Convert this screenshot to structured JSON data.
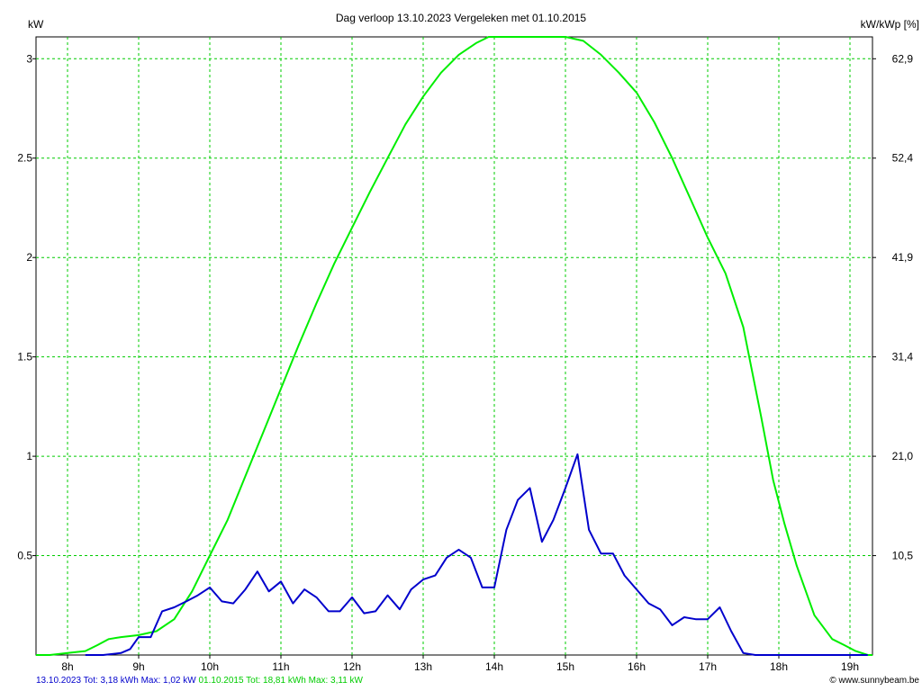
{
  "chart_data": {
    "type": "line",
    "title": "Dag  verloop 13.10.2023   Vergeleken met 01.10.2015",
    "ylabel": "kW",
    "ylabel_right": "kW/kWp [%]",
    "ylim": [
      0,
      3.11
    ],
    "x_ticks": [
      "8h",
      "9h",
      "10h",
      "11h",
      "12h",
      "13h",
      "14h",
      "15h",
      "16h",
      "17h",
      "18h",
      "19h"
    ],
    "y_ticks": [
      {
        "value": 0.5,
        "label": "0.5"
      },
      {
        "value": 1.0,
        "label": "1"
      },
      {
        "value": 1.5,
        "label": "1.5"
      },
      {
        "value": 2.0,
        "label": "2"
      },
      {
        "value": 2.5,
        "label": "2.5"
      },
      {
        "value": 3.0,
        "label": "3"
      }
    ],
    "y_right_ticks": [
      {
        "value": 0.5,
        "label": "10,5"
      },
      {
        "value": 1.0,
        "label": "21,0"
      },
      {
        "value": 1.5,
        "label": "31,4"
      },
      {
        "value": 2.0,
        "label": "41,9"
      },
      {
        "value": 2.5,
        "label": "52,4"
      },
      {
        "value": 3.0,
        "label": "62,9"
      }
    ],
    "grid": true,
    "series": [
      {
        "name": "01.10.2015",
        "color": "#00ee00",
        "x": [
          7.25,
          7.5,
          7.75,
          8.0,
          8.25,
          8.42,
          8.58,
          8.75,
          9.0,
          9.25,
          9.5,
          9.75,
          10.0,
          10.25,
          10.5,
          10.75,
          11.0,
          11.25,
          11.5,
          11.75,
          12.0,
          12.25,
          12.5,
          12.75,
          13.0,
          13.25,
          13.5,
          13.75,
          13.92,
          14.08,
          14.25,
          14.42,
          14.58,
          14.75,
          15.0,
          15.25,
          15.5,
          15.75,
          16.0,
          16.25,
          16.5,
          16.75,
          17.0,
          17.25,
          17.5,
          17.75,
          17.92,
          18.08,
          18.25,
          18.5,
          18.75,
          18.92,
          19.08,
          19.25,
          19.5
        ],
        "y": [
          0,
          0,
          0,
          0.01,
          0.02,
          0.05,
          0.08,
          0.09,
          0.1,
          0.12,
          0.18,
          0.32,
          0.5,
          0.68,
          0.9,
          1.12,
          1.34,
          1.56,
          1.77,
          1.97,
          2.15,
          2.33,
          2.5,
          2.67,
          2.81,
          2.93,
          3.02,
          3.08,
          3.11,
          3.11,
          3.11,
          3.11,
          3.11,
          3.11,
          3.11,
          3.09,
          3.02,
          2.93,
          2.83,
          2.68,
          2.5,
          2.3,
          2.1,
          1.92,
          1.65,
          1.2,
          0.88,
          0.66,
          0.45,
          0.2,
          0.08,
          0.05,
          0.02,
          0,
          0
        ]
      },
      {
        "name": "13.10.2023",
        "color": "#0000cc",
        "x": [
          8.25,
          8.5,
          8.75,
          8.88,
          9.0,
          9.17,
          9.33,
          9.5,
          9.67,
          9.83,
          10.0,
          10.17,
          10.33,
          10.5,
          10.67,
          10.83,
          11.0,
          11.17,
          11.33,
          11.5,
          11.67,
          11.83,
          12.0,
          12.17,
          12.33,
          12.5,
          12.67,
          12.83,
          13.0,
          13.17,
          13.33,
          13.5,
          13.67,
          13.83,
          14.0,
          14.17,
          14.33,
          14.5,
          14.67,
          14.83,
          15.0,
          15.17,
          15.33,
          15.5,
          15.67,
          15.83,
          16.0,
          16.17,
          16.33,
          16.5,
          16.67,
          16.83,
          17.0,
          17.17,
          17.33,
          17.5,
          17.67,
          17.83,
          18.0,
          18.5,
          19.0,
          19.25
        ],
        "y": [
          0,
          0,
          0.01,
          0.03,
          0.09,
          0.09,
          0.22,
          0.24,
          0.27,
          0.3,
          0.34,
          0.27,
          0.26,
          0.33,
          0.42,
          0.32,
          0.37,
          0.26,
          0.33,
          0.29,
          0.22,
          0.22,
          0.29,
          0.21,
          0.22,
          0.3,
          0.23,
          0.33,
          0.38,
          0.4,
          0.49,
          0.53,
          0.49,
          0.34,
          0.34,
          0.63,
          0.78,
          0.84,
          0.57,
          0.68,
          0.84,
          1.01,
          0.63,
          0.51,
          0.51,
          0.4,
          0.33,
          0.26,
          0.23,
          0.15,
          0.19,
          0.18,
          0.18,
          0.24,
          0.12,
          0.01,
          0,
          0,
          0,
          0,
          0,
          0
        ]
      }
    ]
  },
  "footer": {
    "current_label": "13.10.2023 Tot: 3,18 kWh Max: 1,02 kW",
    "current_color": "#0000cc",
    "compare_label": "01.10.2015 Tot: 18,81 kWh Max: 3,11 kW",
    "compare_color": "#00cc00",
    "credit_icon": "copyright-icon",
    "credit": "www.sunnybeam.be"
  }
}
